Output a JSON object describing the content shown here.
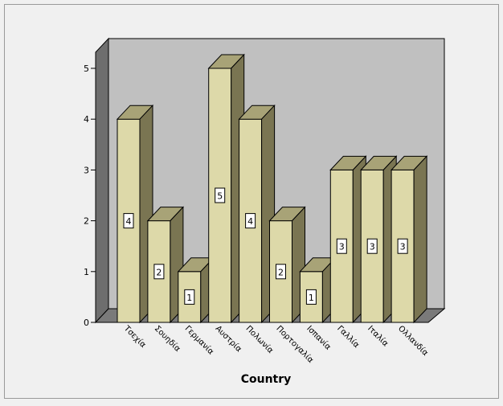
{
  "chart_data": {
    "type": "bar",
    "title": "",
    "xlabel": "Country",
    "ylabel": "",
    "categories": [
      "Τσεχία",
      "Σουηδία",
      "Γερμανία",
      "Αυστρία",
      "Πολωνία",
      "Πορτογαλία",
      "Ισπανία",
      "Γαλλία",
      "Ιταλία",
      "Ολλανδία"
    ],
    "values": [
      4,
      2,
      1,
      5,
      4,
      2,
      1,
      3,
      3,
      3
    ],
    "data_labels": [
      "4",
      "2",
      "1",
      "5",
      "4",
      "2",
      "1",
      "3",
      "3",
      "3"
    ],
    "y_ticks": [
      "0",
      "1",
      "2",
      "3",
      "4",
      "5"
    ],
    "ylim": [
      0,
      5
    ],
    "grid": false,
    "legend": "none",
    "style": "3d",
    "colors": {
      "background": "#f0f0f0",
      "plot_back": "#c0c0c0",
      "plot_side": "#6e6e6e",
      "plot_floor": "#7a7a7a",
      "bar_front": "#ddd9a9",
      "bar_top": "#a8a377",
      "bar_side": "#7a7552",
      "border": "#000000",
      "label_box": "#ffffff"
    }
  }
}
